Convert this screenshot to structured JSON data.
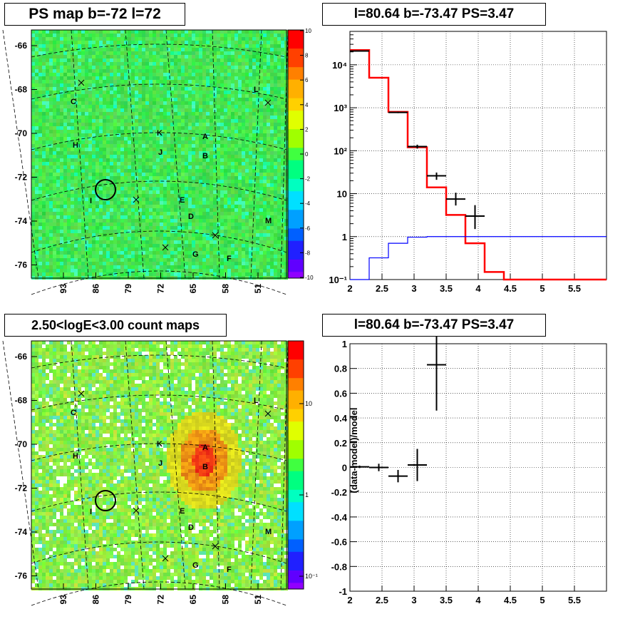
{
  "panels": {
    "map1": {
      "title": "PS map b=-72 l=72",
      "y_ticks": [
        "-66",
        "-68",
        "-70",
        "-72",
        "-74",
        "-76"
      ],
      "x_ticks": [
        "93",
        "86",
        "79",
        "72",
        "65",
        "58",
        "51"
      ],
      "colorbar_ticks": [
        "10",
        "8",
        "6",
        "4",
        "2",
        "0",
        "-2",
        "-4",
        "-6",
        "-8",
        "-10"
      ],
      "labels": [
        "C",
        "H",
        "K",
        "J",
        "A",
        "B",
        "E",
        "D",
        "L",
        "M",
        "G",
        "F",
        "I"
      ]
    },
    "map2": {
      "title": "2.50<logE<3.00 count maps",
      "y_ticks": [
        "-66",
        "-68",
        "-70",
        "-72",
        "-74",
        "-76"
      ],
      "x_ticks": [
        "93",
        "86",
        "79",
        "72",
        "65",
        "58",
        "51"
      ],
      "colorbar_ticks": [
        "10",
        "1",
        "10⁻¹"
      ],
      "labels": [
        "C",
        "H",
        "K",
        "J",
        "A",
        "B",
        "E",
        "D",
        "L",
        "M",
        "G",
        "F",
        "I"
      ]
    }
  },
  "chart_data": [
    {
      "type": "line",
      "title": "l=80.64 b=-73.47 PS=3.47",
      "yscale": "log",
      "xlim": [
        2,
        6
      ],
      "ylim": [
        0.1,
        60000
      ],
      "x_ticks": [
        "2",
        "2.5",
        "3",
        "3.5",
        "4",
        "4.5",
        "5",
        "5.5"
      ],
      "y_ticks": [
        "10⁻¹",
        "1",
        "10",
        "10²",
        "10³",
        "10⁴"
      ],
      "grid": true,
      "series": [
        {
          "color": "#ff0000",
          "style": "step",
          "edges": [
            2.0,
            2.3,
            2.6,
            2.9,
            3.2,
            3.5,
            3.8,
            4.1,
            4.4,
            6.0
          ],
          "values": [
            22000,
            5000,
            800,
            120,
            14,
            3.2,
            0.7,
            0.15,
            0.1
          ]
        },
        {
          "color": "#0000ff",
          "style": "step",
          "edges": [
            2.0,
            2.3,
            2.6,
            2.9,
            3.2,
            6.0
          ],
          "values": [
            0.1,
            0.32,
            0.7,
            0.97,
            1.0
          ]
        },
        {
          "color": "#000000",
          "style": "errorbar",
          "points": [
            {
              "x": 2.15,
              "y": 21000,
              "dx": 0.15,
              "ylo": 20500,
              "yhi": 21500
            },
            {
              "x": 2.75,
              "y": 780,
              "dx": 0.15,
              "ylo": 750,
              "yhi": 810
            },
            {
              "x": 3.05,
              "y": 125,
              "dx": 0.15,
              "ylo": 112,
              "yhi": 138
            },
            {
              "x": 3.35,
              "y": 26,
              "dx": 0.15,
              "ylo": 21,
              "yhi": 31
            },
            {
              "x": 3.65,
              "y": 7.5,
              "dx": 0.15,
              "ylo": 5.3,
              "yhi": 10.5
            },
            {
              "x": 3.95,
              "y": 3.0,
              "dx": 0.15,
              "ylo": 1.5,
              "yhi": 5.4
            }
          ]
        }
      ]
    },
    {
      "type": "scatter",
      "title": "l=80.64 b=-73.47 PS=3.47",
      "ylabel": "(data-model)/model",
      "xlim": [
        2,
        6
      ],
      "ylim": [
        -1,
        1
      ],
      "x_ticks": [
        "2",
        "2.5",
        "3",
        "3.5",
        "4",
        "4.5",
        "5",
        "5.5"
      ],
      "y_ticks": [
        "-1",
        "-0.8",
        "-0.6",
        "-0.4",
        "-0.2",
        "0",
        "0.2",
        "0.4",
        "0.6",
        "0.8",
        "1"
      ],
      "grid": true,
      "series": [
        {
          "color": "#000000",
          "points": [
            {
              "x": 2.15,
              "y": 0.005,
              "dx": 0.15,
              "dy": 0.01
            },
            {
              "x": 2.45,
              "y": 0.0,
              "dx": 0.15,
              "dy": 0.03
            },
            {
              "x": 2.75,
              "y": -0.07,
              "dx": 0.15,
              "dy": 0.05
            },
            {
              "x": 3.05,
              "y": 0.02,
              "dx": 0.15,
              "dy": 0.13
            },
            {
              "x": 3.35,
              "y": 0.83,
              "dx": 0.15,
              "dy": 0.37
            }
          ]
        }
      ]
    }
  ]
}
